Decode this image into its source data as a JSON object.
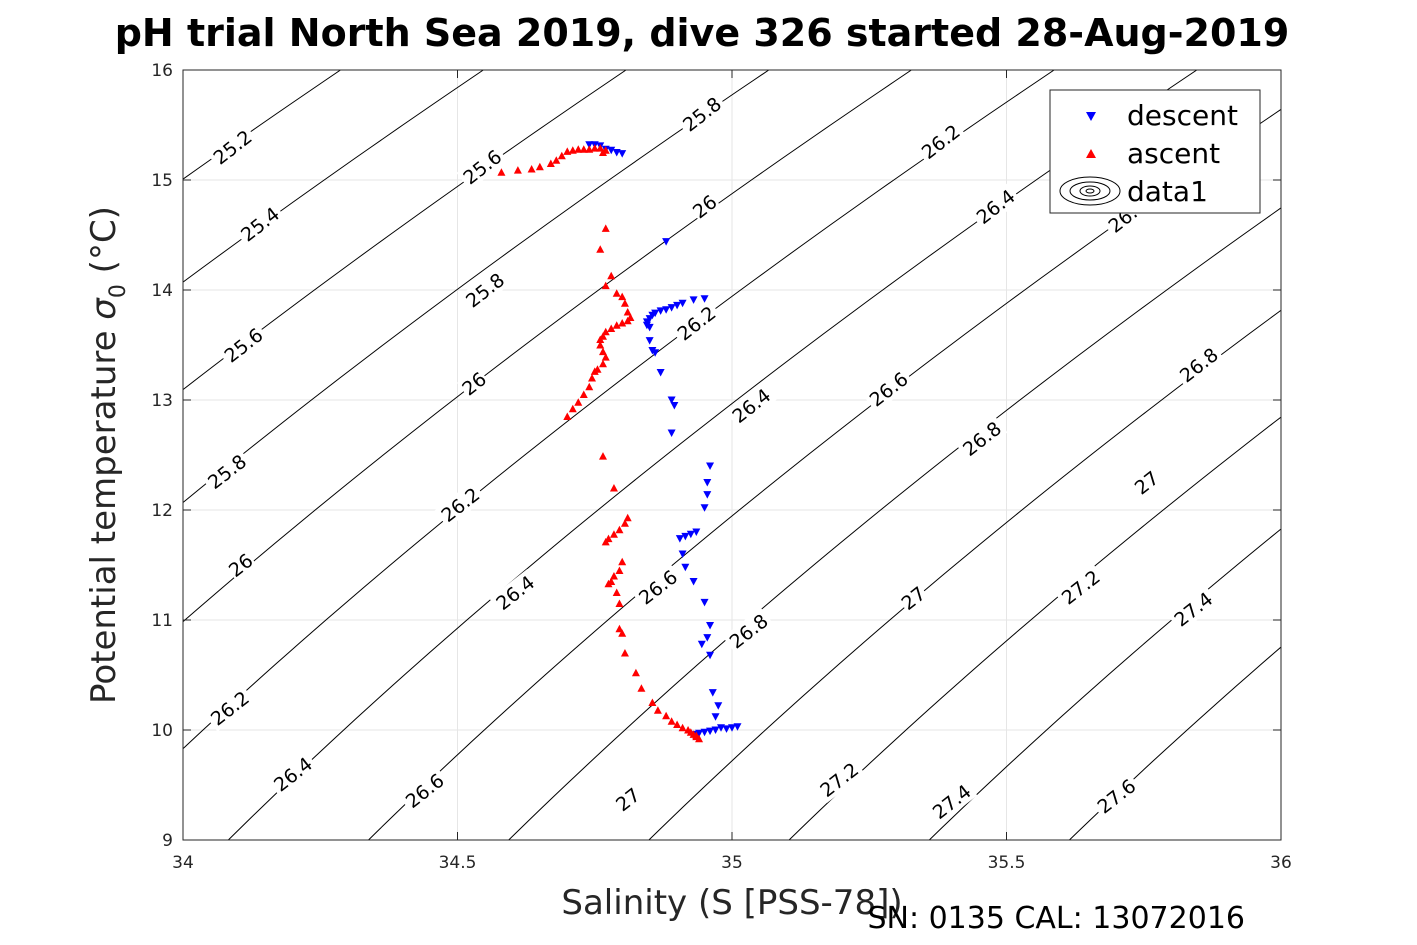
{
  "chart_data": {
    "type": "scatter",
    "title": "pH trial North Sea 2019, dive 326 started 28-Aug-2019",
    "xlabel": "Salinity (S [PSS-78])",
    "ylabel_main": "Potential temperature ",
    "ylabel_sigma": "σ",
    "ylabel_sub": "0",
    "ylabel_unit": " (°C)",
    "footer": "SN: 0135  CAL: 13072016",
    "xlim": [
      34,
      36
    ],
    "ylim": [
      9,
      16
    ],
    "x_ticks": [
      34,
      34.5,
      35,
      35.5,
      36
    ],
    "x_tick_labels": [
      "34",
      "34.5",
      "35",
      "35.5",
      "36"
    ],
    "y_ticks": [
      9,
      10,
      11,
      12,
      13,
      14,
      15,
      16
    ],
    "y_tick_labels": [
      "9",
      "10",
      "11",
      "12",
      "13",
      "14",
      "15",
      "16"
    ],
    "grid": true,
    "legend_position": "top-right",
    "legend": [
      {
        "label": "descent",
        "marker": "triangle-down",
        "color": "#0000ff"
      },
      {
        "label": "ascent",
        "marker": "triangle-up",
        "color": "#ff0000"
      },
      {
        "label": "data1",
        "marker": "contour",
        "color": "#000000"
      }
    ],
    "contours": {
      "levels": [
        25.2,
        25.4,
        25.6,
        25.8,
        26,
        26.2,
        26.4,
        26.6,
        26.8,
        27,
        27.2,
        27.4,
        27.6
      ],
      "labels": [
        {
          "text": "25.2",
          "s": 34.09,
          "t": 15.3
        },
        {
          "text": "25.4",
          "s": 34.14,
          "t": 14.6
        },
        {
          "text": "25.6",
          "s": 34.11,
          "t": 13.5
        },
        {
          "text": "25.8",
          "s": 34.08,
          "t": 12.35
        },
        {
          "text": "26",
          "s": 34.105,
          "t": 11.5
        },
        {
          "text": "26.2",
          "s": 34.085,
          "t": 10.2
        },
        {
          "text": "26.4",
          "s": 34.2,
          "t": 9.6
        },
        {
          "text": "25.6",
          "s": 34.545,
          "t": 15.12
        },
        {
          "text": "25.8",
          "s": 34.55,
          "t": 14.0
        },
        {
          "text": "26",
          "s": 34.53,
          "t": 13.15
        },
        {
          "text": "26.2",
          "s": 34.505,
          "t": 12.05
        },
        {
          "text": "26.4",
          "s": 34.605,
          "t": 11.25
        },
        {
          "text": "26.6",
          "s": 34.44,
          "t": 9.45
        },
        {
          "text": "25.8",
          "s": 34.945,
          "t": 15.6
        },
        {
          "text": "26",
          "s": 34.95,
          "t": 14.76
        },
        {
          "text": "26.2",
          "s": 34.935,
          "t": 13.7
        },
        {
          "text": "26.4",
          "s": 35.035,
          "t": 12.95
        },
        {
          "text": "26.6",
          "s": 34.865,
          "t": 11.3
        },
        {
          "text": "26.8",
          "s": 35.03,
          "t": 10.9
        },
        {
          "text": "27",
          "s": 34.81,
          "t": 9.37
        },
        {
          "text": "26.2",
          "s": 35.38,
          "t": 15.35
        },
        {
          "text": "26.4",
          "s": 35.48,
          "t": 14.76
        },
        {
          "text": "26.6",
          "s": 35.285,
          "t": 13.1
        },
        {
          "text": "26.8",
          "s": 35.455,
          "t": 12.65
        },
        {
          "text": "27",
          "s": 35.33,
          "t": 11.2
        },
        {
          "text": "27.2",
          "s": 35.195,
          "t": 9.55
        },
        {
          "text": "27.4",
          "s": 35.4,
          "t": 9.35
        },
        {
          "text": "26.6",
          "s": 35.72,
          "t": 14.68
        },
        {
          "text": "26.8",
          "s": 35.85,
          "t": 13.32
        },
        {
          "text": "27",
          "s": 35.755,
          "t": 12.25
        },
        {
          "text": "27.2",
          "s": 35.635,
          "t": 11.3
        },
        {
          "text": "27.4",
          "s": 35.84,
          "t": 11.1
        },
        {
          "text": "27.6",
          "s": 35.7,
          "t": 9.4
        }
      ]
    },
    "series": [
      {
        "name": "descent",
        "marker": "triangle-down",
        "color": "#0000ff",
        "points": [
          [
            34.74,
            15.32
          ],
          [
            34.75,
            15.32
          ],
          [
            34.76,
            15.31
          ],
          [
            34.77,
            15.28
          ],
          [
            34.78,
            15.27
          ],
          [
            34.79,
            15.25
          ],
          [
            34.8,
            15.24
          ],
          [
            34.88,
            14.44
          ],
          [
            34.95,
            13.92
          ],
          [
            34.93,
            13.91
          ],
          [
            34.91,
            13.88
          ],
          [
            34.9,
            13.86
          ],
          [
            34.89,
            13.84
          ],
          [
            34.88,
            13.82
          ],
          [
            34.87,
            13.81
          ],
          [
            34.86,
            13.79
          ],
          [
            34.855,
            13.77
          ],
          [
            34.85,
            13.74
          ],
          [
            34.845,
            13.71
          ],
          [
            34.845,
            13.68
          ],
          [
            34.85,
            13.66
          ],
          [
            34.85,
            13.54
          ],
          [
            34.855,
            13.45
          ],
          [
            34.86,
            13.43
          ],
          [
            34.87,
            13.25
          ],
          [
            34.89,
            13.0
          ],
          [
            34.895,
            12.95
          ],
          [
            34.89,
            12.7
          ],
          [
            34.96,
            12.4
          ],
          [
            34.955,
            12.25
          ],
          [
            34.955,
            12.14
          ],
          [
            34.95,
            12.02
          ],
          [
            34.935,
            11.8
          ],
          [
            34.925,
            11.78
          ],
          [
            34.915,
            11.76
          ],
          [
            34.905,
            11.74
          ],
          [
            34.91,
            11.6
          ],
          [
            34.915,
            11.48
          ],
          [
            34.93,
            11.35
          ],
          [
            34.95,
            11.16
          ],
          [
            34.96,
            10.95
          ],
          [
            34.955,
            10.84
          ],
          [
            34.945,
            10.78
          ],
          [
            34.96,
            10.68
          ],
          [
            34.965,
            10.34
          ],
          [
            34.975,
            10.22
          ],
          [
            34.97,
            10.12
          ],
          [
            34.98,
            10.02
          ],
          [
            35.0,
            10.02
          ],
          [
            35.01,
            10.03
          ],
          [
            34.99,
            10.01
          ],
          [
            34.97,
            10.0
          ],
          [
            34.96,
            9.99
          ],
          [
            34.95,
            9.98
          ],
          [
            34.94,
            9.97
          ],
          [
            34.935,
            9.96
          ]
        ]
      },
      {
        "name": "ascent",
        "marker": "triangle-up",
        "color": "#ff0000",
        "points": [
          [
            34.58,
            15.07
          ],
          [
            34.61,
            15.09
          ],
          [
            34.635,
            15.1
          ],
          [
            34.65,
            15.12
          ],
          [
            34.67,
            15.15
          ],
          [
            34.68,
            15.18
          ],
          [
            34.69,
            15.22
          ],
          [
            34.7,
            15.26
          ],
          [
            34.71,
            15.27
          ],
          [
            34.72,
            15.28
          ],
          [
            34.73,
            15.28
          ],
          [
            34.74,
            15.28
          ],
          [
            34.75,
            15.29
          ],
          [
            34.76,
            15.29
          ],
          [
            34.77,
            15.27
          ],
          [
            34.765,
            15.25
          ],
          [
            34.77,
            14.56
          ],
          [
            34.76,
            14.37
          ],
          [
            34.78,
            14.13
          ],
          [
            34.77,
            14.04
          ],
          [
            34.79,
            13.97
          ],
          [
            34.8,
            13.94
          ],
          [
            34.805,
            13.88
          ],
          [
            34.81,
            13.8
          ],
          [
            34.815,
            13.75
          ],
          [
            34.81,
            13.72
          ],
          [
            34.8,
            13.7
          ],
          [
            34.79,
            13.68
          ],
          [
            34.78,
            13.65
          ],
          [
            34.77,
            13.62
          ],
          [
            34.765,
            13.58
          ],
          [
            34.76,
            13.55
          ],
          [
            34.76,
            13.5
          ],
          [
            34.765,
            13.44
          ],
          [
            34.77,
            13.39
          ],
          [
            34.765,
            13.33
          ],
          [
            34.755,
            13.28
          ],
          [
            34.75,
            13.26
          ],
          [
            34.745,
            13.2
          ],
          [
            34.74,
            13.12
          ],
          [
            34.73,
            13.05
          ],
          [
            34.72,
            12.98
          ],
          [
            34.71,
            12.92
          ],
          [
            34.7,
            12.85
          ],
          [
            34.765,
            12.49
          ],
          [
            34.785,
            12.2
          ],
          [
            34.81,
            11.93
          ],
          [
            34.805,
            11.88
          ],
          [
            34.795,
            11.82
          ],
          [
            34.785,
            11.78
          ],
          [
            34.775,
            11.74
          ],
          [
            34.77,
            11.71
          ],
          [
            34.8,
            11.53
          ],
          [
            34.795,
            11.45
          ],
          [
            34.785,
            11.4
          ],
          [
            34.78,
            11.35
          ],
          [
            34.775,
            11.33
          ],
          [
            34.79,
            11.25
          ],
          [
            34.795,
            11.15
          ],
          [
            34.795,
            10.92
          ],
          [
            34.8,
            10.88
          ],
          [
            34.805,
            10.7
          ],
          [
            34.825,
            10.52
          ],
          [
            34.835,
            10.38
          ],
          [
            34.855,
            10.25
          ],
          [
            34.865,
            10.18
          ],
          [
            34.88,
            10.13
          ],
          [
            34.89,
            10.08
          ],
          [
            34.9,
            10.05
          ],
          [
            34.91,
            10.02
          ],
          [
            34.92,
            10.0
          ],
          [
            34.925,
            9.98
          ],
          [
            34.93,
            9.96
          ],
          [
            34.935,
            9.94
          ],
          [
            34.94,
            9.92
          ],
          [
            34.935,
            9.95
          ]
        ]
      }
    ]
  }
}
